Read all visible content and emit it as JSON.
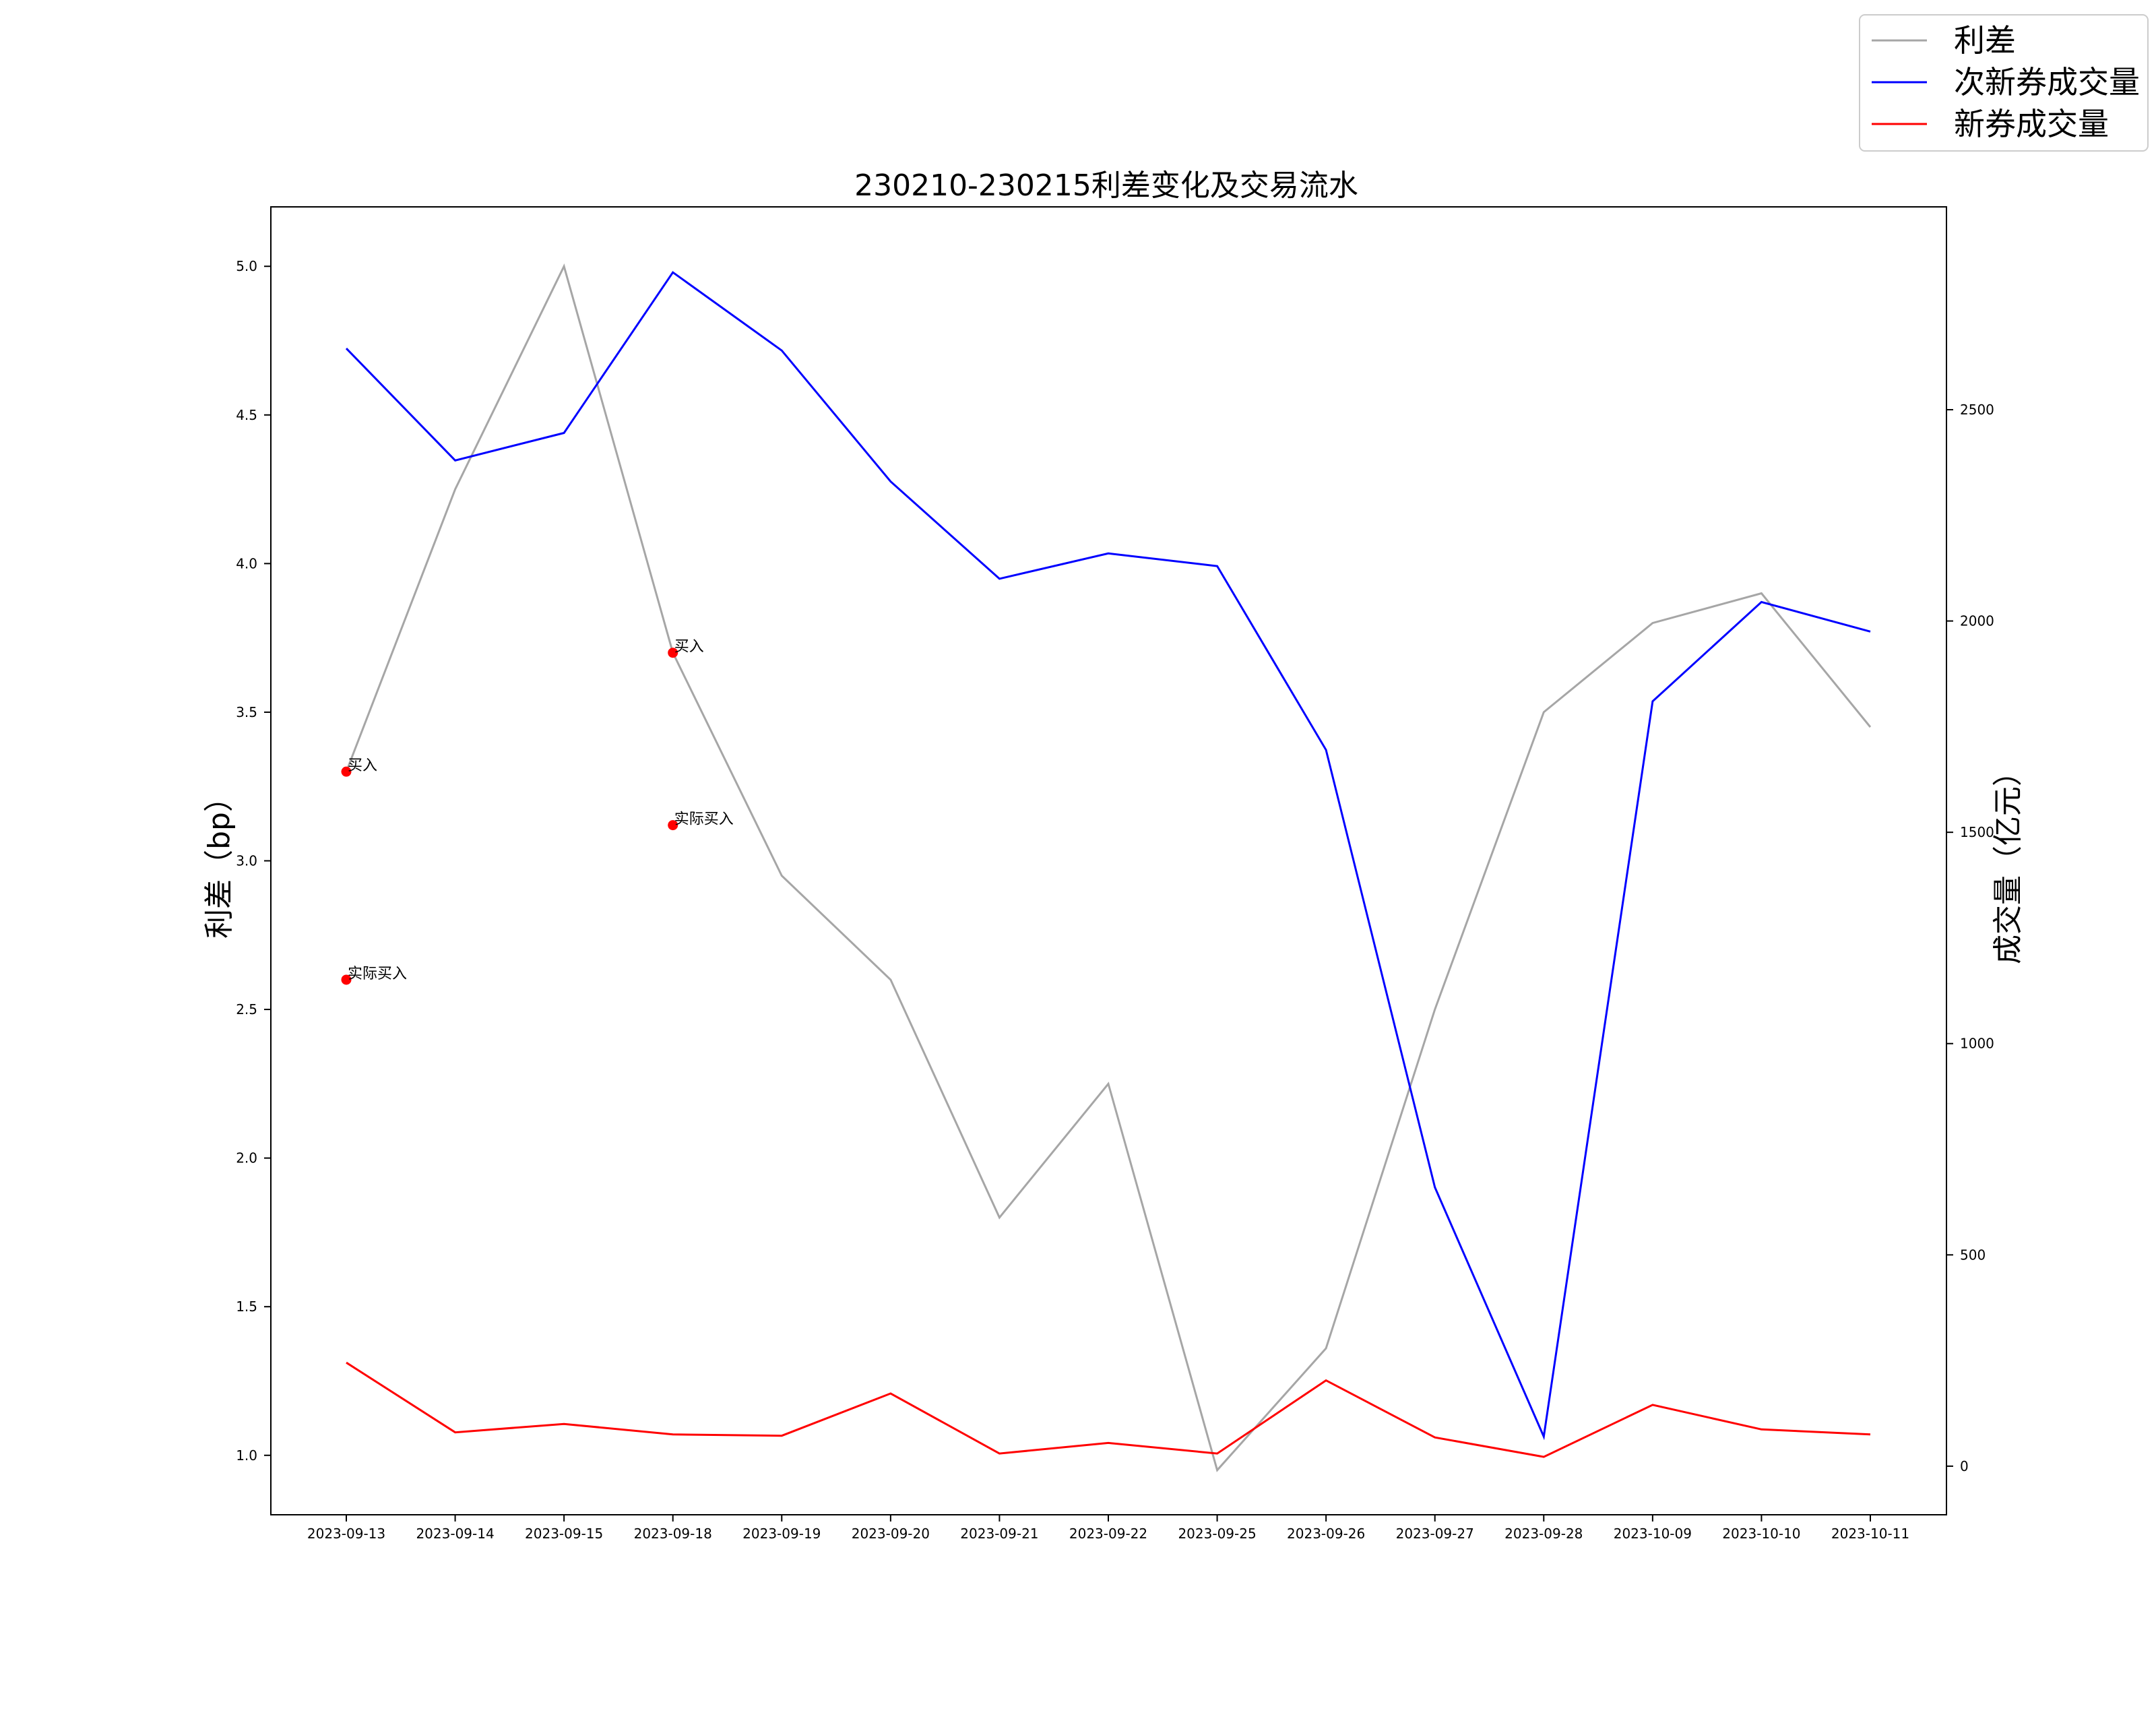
{
  "chart_data": {
    "type": "line",
    "title": "230210-230215利差变化及交易流水",
    "xlabel": "",
    "ylabel": "利差（bp）",
    "y2label": "成交量（亿元）",
    "categories": [
      "2023-09-13",
      "2023-09-14",
      "2023-09-15",
      "2023-09-18",
      "2023-09-19",
      "2023-09-20",
      "2023-09-21",
      "2023-09-22",
      "2023-09-25",
      "2023-09-26",
      "2023-09-27",
      "2023-09-28",
      "2023-10-09",
      "2023-10-10",
      "2023-10-11"
    ],
    "ylim": [
      0.8,
      5.2
    ],
    "y2lim": [
      -115,
      2980
    ],
    "yticks": [
      "1.0",
      "1.5",
      "2.0",
      "2.5",
      "3.0",
      "3.5",
      "4.0",
      "4.5",
      "5.0"
    ],
    "y2ticks": [
      "0",
      "500",
      "1000",
      "1500",
      "2000",
      "2500"
    ],
    "series": [
      {
        "name": "利差",
        "axis": "left",
        "color": "#a6a6a6",
        "values": [
          3.3,
          4.25,
          5.0,
          3.7,
          2.95,
          2.6,
          1.8,
          2.25,
          0.95,
          1.36,
          2.5,
          3.5,
          3.8,
          3.9,
          3.45
        ]
      },
      {
        "name": "次新券成交量",
        "axis": "right",
        "color": "#0000ff",
        "values": [
          2645,
          2380,
          2445,
          2825,
          2640,
          2330,
          2100,
          2160,
          2130,
          1695,
          660,
          70,
          1810,
          2045,
          1975
        ]
      },
      {
        "name": "新券成交量",
        "axis": "right",
        "color": "#ff0000",
        "values": [
          245,
          80,
          100,
          75,
          72,
          172,
          30,
          55,
          30,
          203,
          68,
          22,
          145,
          87,
          75
        ]
      }
    ],
    "annotations": [
      {
        "category": "2023-09-13",
        "y": 3.3,
        "text": "买入",
        "color": "#ff0000"
      },
      {
        "category": "2023-09-13",
        "y": 2.6,
        "text": "实际买入",
        "color": "#ff0000"
      },
      {
        "category": "2023-09-18",
        "y": 3.7,
        "text": "买入",
        "color": "#ff0000"
      },
      {
        "category": "2023-09-18",
        "y": 3.12,
        "text": "实际买入",
        "color": "#ff0000"
      }
    ],
    "legend": "top-right",
    "grid": false
  }
}
